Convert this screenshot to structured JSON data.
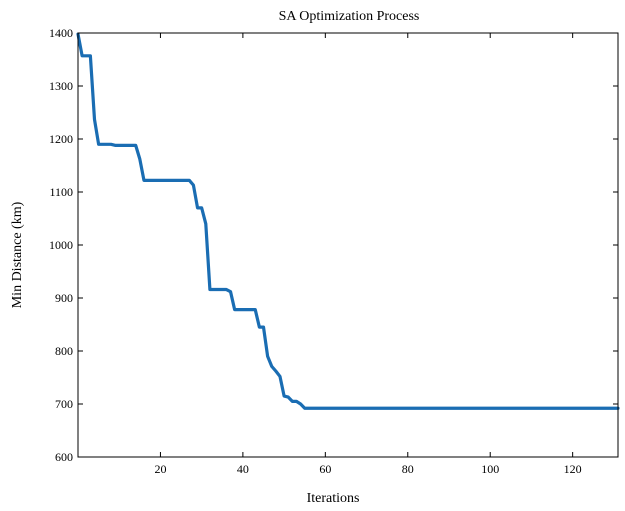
{
  "chart_data": {
    "type": "line",
    "title": "SA Optimization Process",
    "xlabel": "Iterations",
    "ylabel": "Min Distance (km)",
    "xlim": [
      0,
      131
    ],
    "ylim": [
      600,
      1400
    ],
    "xticks": [
      20,
      40,
      60,
      80,
      100,
      120
    ],
    "yticks": [
      600,
      700,
      800,
      900,
      1000,
      1100,
      1200,
      1300,
      1400
    ],
    "grid": false,
    "line_color": "#1a6db3",
    "series": [
      {
        "x": [
          0,
          1,
          3,
          4,
          5,
          6,
          8,
          9,
          14,
          15,
          16,
          20,
          27,
          28,
          29,
          30,
          31,
          32,
          36,
          37,
          38,
          42,
          43,
          44,
          45,
          46,
          47,
          48,
          49,
          50,
          51,
          52,
          53,
          54,
          55,
          60,
          80,
          100,
          120,
          131
        ],
        "y": [
          1398,
          1357,
          1357,
          1237,
          1190,
          1190,
          1190,
          1188,
          1188,
          1162,
          1122,
          1122,
          1122,
          1113,
          1070,
          1070,
          1040,
          916,
          916,
          912,
          878,
          878,
          878,
          845,
          845,
          790,
          771,
          762,
          752,
          715,
          713,
          705,
          705,
          700,
          692,
          692,
          692,
          692,
          692,
          692
        ]
      }
    ]
  }
}
